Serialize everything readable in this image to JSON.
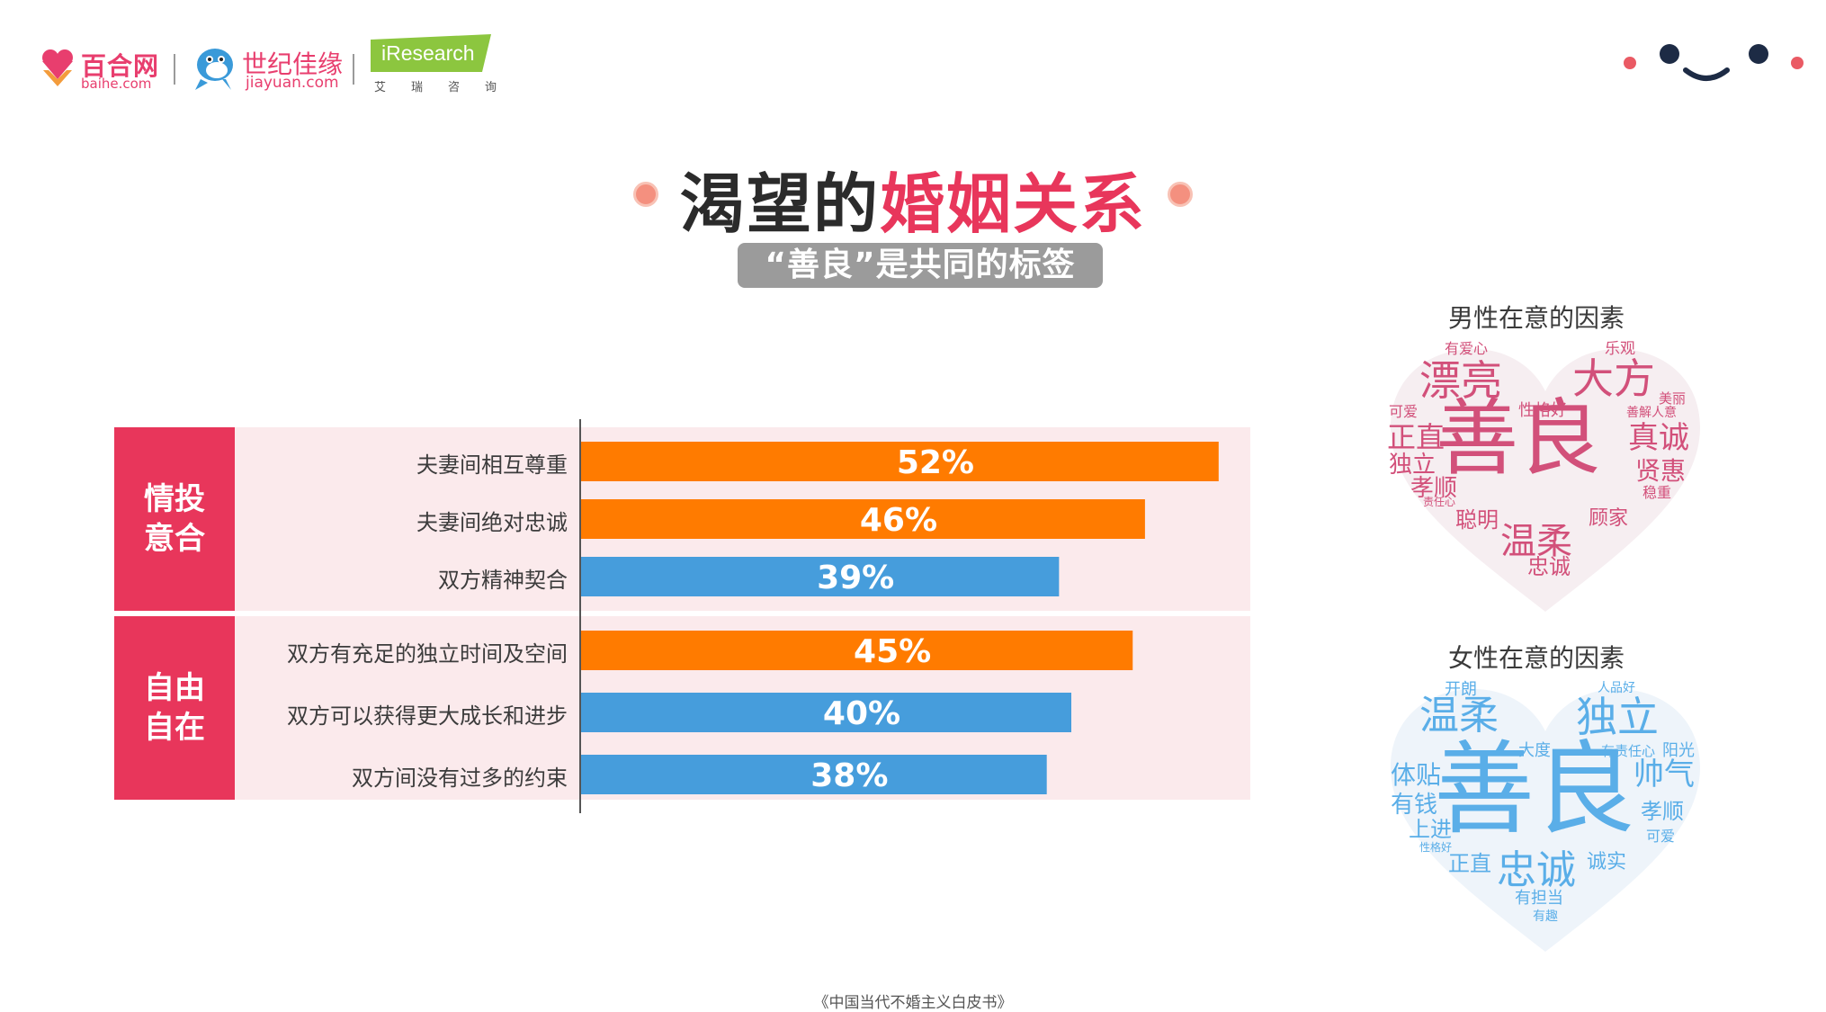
{
  "header": {
    "baihe_brand": "百合网",
    "baihe_url": "baihe.com",
    "jiayuan_brand": "世纪佳缘",
    "jiayuan_url": "jiayuan.com",
    "iresearch_brand": "iResearch",
    "iresearch_cn": "艾瑞咨询"
  },
  "title": {
    "main": "渴望的",
    "accent": "婚姻关系"
  },
  "subtitle": "“善良”是共同的标签",
  "colors": {
    "accent": "#e8365b",
    "orange": "#ff7b00",
    "blue": "#469ddc",
    "row_bg": "#fbeaec",
    "male_words": "#d2507a",
    "female_words": "#5aaee8"
  },
  "chart_data": {
    "type": "bar",
    "orientation": "horizontal",
    "groups": [
      {
        "label": "情投意合",
        "categories": [
          "夫妻间相互尊重",
          "夫妻间绝对忠诚",
          "双方精神契合"
        ]
      },
      {
        "label": "自由自在",
        "categories": [
          "双方有充足的独立时间及空间",
          "双方可以获得更大成长和进步",
          "双方间没有过多的约束"
        ]
      }
    ],
    "categories": [
      "夫妻间相互尊重",
      "夫妻间绝对忠诚",
      "双方精神契合",
      "双方有充足的独立时间及空间",
      "双方可以获得更大成长和进步",
      "双方间没有过多的约束"
    ],
    "values": [
      52,
      46,
      39,
      45,
      40,
      38
    ],
    "value_labels": [
      "52%",
      "46%",
      "39%",
      "45%",
      "40%",
      "38%"
    ],
    "bar_colors": [
      "orange",
      "orange",
      "blue",
      "orange",
      "blue",
      "blue"
    ],
    "xlim": [
      0,
      55
    ],
    "grid": false,
    "legend": "none"
  },
  "male_cloud": {
    "title": "男性在意的因素",
    "words": [
      "善良",
      "漂亮",
      "大方",
      "温柔",
      "真诚",
      "正直",
      "独立",
      "孝顺",
      "贤惠",
      "聪明",
      "顾家",
      "忠诚",
      "有爱心",
      "乐观",
      "美丽",
      "可爱",
      "性格好",
      "善解人意",
      "稳重",
      "责任心"
    ]
  },
  "female_cloud": {
    "title": "女性在意的因素",
    "words": [
      "善良",
      "温柔",
      "独立",
      "忠诚",
      "帅气",
      "体贴",
      "有钱",
      "上进",
      "孝顺",
      "正直",
      "诚实",
      "大度",
      "开朗",
      "人品好",
      "有责任心",
      "阳光",
      "可爱",
      "性格好",
      "有担当",
      "有趣"
    ]
  },
  "footer": "《中国当代不婚主义白皮书》"
}
